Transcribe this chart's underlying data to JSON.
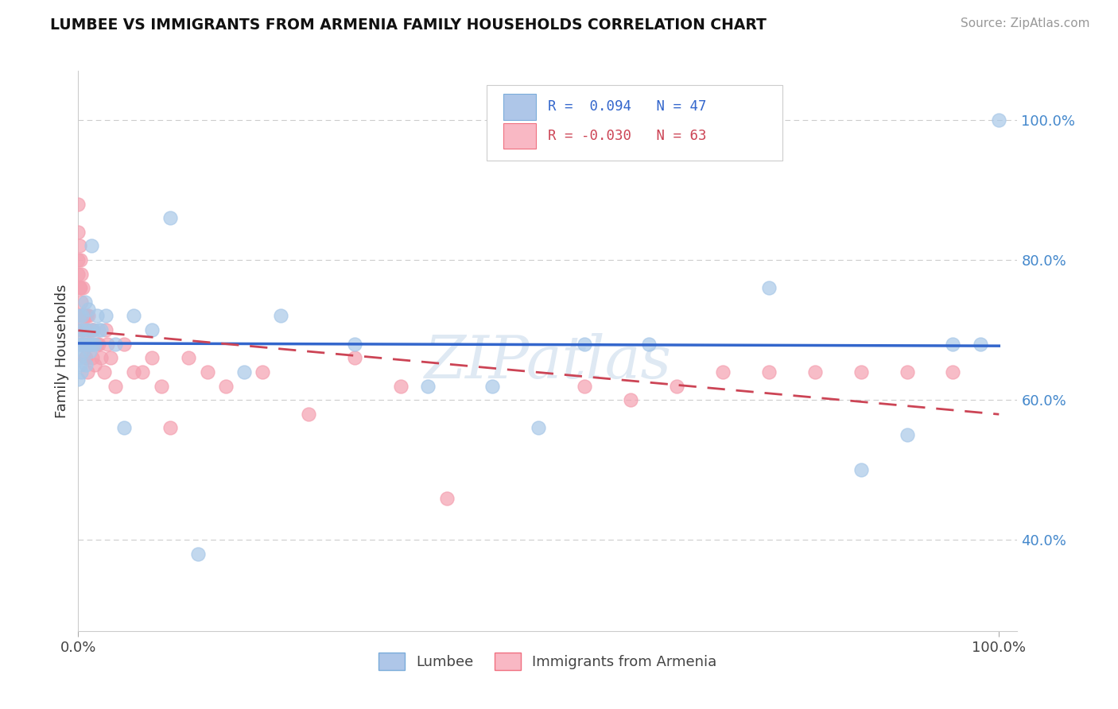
{
  "title": "LUMBEE VS IMMIGRANTS FROM ARMENIA FAMILY HOUSEHOLDS CORRELATION CHART",
  "source": "Source: ZipAtlas.com",
  "ylabel": "Family Households",
  "blue_color": "#a8c8e8",
  "pink_color": "#f4a0b0",
  "blue_line_color": "#3366cc",
  "pink_line_color": "#cc4455",
  "watermark": "ZIPAtlas",
  "lumbee_x": [
    0.0,
    0.0,
    0.001,
    0.001,
    0.002,
    0.002,
    0.003,
    0.003,
    0.004,
    0.005,
    0.006,
    0.006,
    0.007,
    0.008,
    0.009,
    0.01,
    0.011,
    0.012,
    0.013,
    0.014,
    0.015,
    0.016,
    0.018,
    0.02,
    0.022,
    0.025,
    0.03,
    0.04,
    0.05,
    0.06,
    0.08,
    0.1,
    0.13,
    0.18,
    0.22,
    0.3,
    0.38,
    0.45,
    0.5,
    0.55,
    0.62,
    0.75,
    0.85,
    0.9,
    0.95,
    0.98,
    1.0
  ],
  "lumbee_y": [
    0.68,
    0.63,
    0.66,
    0.72,
    0.65,
    0.7,
    0.68,
    0.64,
    0.72,
    0.67,
    0.7,
    0.68,
    0.74,
    0.65,
    0.68,
    0.7,
    0.73,
    0.68,
    0.67,
    0.82,
    0.68,
    0.7,
    0.68,
    0.72,
    0.7,
    0.7,
    0.72,
    0.68,
    0.56,
    0.72,
    0.7,
    0.86,
    0.38,
    0.64,
    0.72,
    0.68,
    0.62,
    0.62,
    0.56,
    0.68,
    0.68,
    0.76,
    0.5,
    0.55,
    0.68,
    0.68,
    1.0
  ],
  "armenia_x": [
    0.0,
    0.0,
    0.0,
    0.0,
    0.0,
    0.001,
    0.001,
    0.001,
    0.002,
    0.002,
    0.003,
    0.003,
    0.004,
    0.004,
    0.005,
    0.005,
    0.006,
    0.006,
    0.007,
    0.007,
    0.008,
    0.008,
    0.009,
    0.01,
    0.01,
    0.011,
    0.012,
    0.013,
    0.014,
    0.015,
    0.016,
    0.018,
    0.02,
    0.022,
    0.025,
    0.028,
    0.03,
    0.032,
    0.035,
    0.04,
    0.05,
    0.06,
    0.07,
    0.08,
    0.09,
    0.1,
    0.12,
    0.14,
    0.16,
    0.2,
    0.25,
    0.3,
    0.35,
    0.4,
    0.55,
    0.6,
    0.65,
    0.7,
    0.75,
    0.8,
    0.85,
    0.9,
    0.95
  ],
  "armenia_y": [
    0.88,
    0.84,
    0.8,
    0.78,
    0.72,
    0.82,
    0.76,
    0.7,
    0.8,
    0.76,
    0.78,
    0.74,
    0.72,
    0.68,
    0.76,
    0.7,
    0.72,
    0.68,
    0.72,
    0.66,
    0.7,
    0.66,
    0.72,
    0.7,
    0.64,
    0.72,
    0.68,
    0.68,
    0.7,
    0.66,
    0.7,
    0.65,
    0.68,
    0.68,
    0.66,
    0.64,
    0.7,
    0.68,
    0.66,
    0.62,
    0.68,
    0.64,
    0.64,
    0.66,
    0.62,
    0.56,
    0.66,
    0.64,
    0.62,
    0.64,
    0.58,
    0.66,
    0.62,
    0.46,
    0.62,
    0.6,
    0.62,
    0.64,
    0.64,
    0.64,
    0.64,
    0.64,
    0.64
  ],
  "ytick_vals": [
    0.4,
    0.6,
    0.8,
    1.0
  ],
  "ytick_labels": [
    "40.0%",
    "60.0%",
    "80.0%",
    "100.0%"
  ],
  "ylim": [
    0.27,
    1.07
  ],
  "xlim": [
    0.0,
    1.02
  ]
}
